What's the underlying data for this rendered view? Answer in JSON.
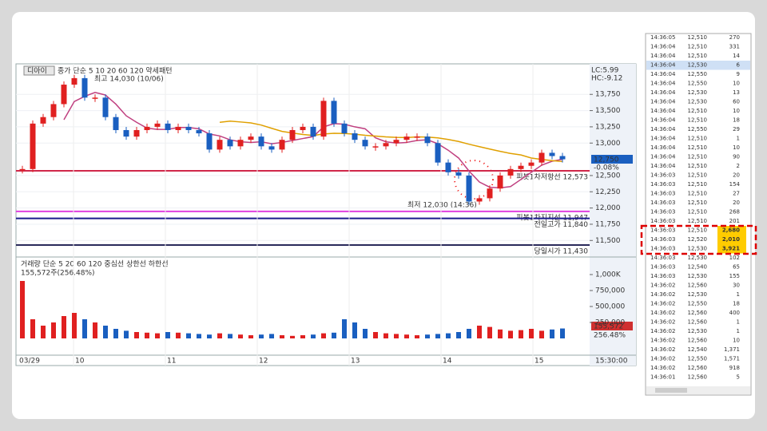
{
  "chart": {
    "symbol": "디아이",
    "legend": "종가 단순 5 10 20 60 120 약세패턴",
    "high_note": "최고 14,030 (10/06)",
    "lc": "LC:5.99",
    "hc": "HC:-9.12",
    "low_note": "최저 12,030 (14:36)",
    "price_ylim": [
      11270,
      14220
    ],
    "price_ticks": [
      {
        "value": 13750,
        "label": "13,750"
      },
      {
        "value": 13500,
        "label": "13,500"
      },
      {
        "value": 13250,
        "label": "13,250"
      },
      {
        "value": 13000,
        "label": "13,000"
      },
      {
        "value": 12500,
        "label": "12,500"
      },
      {
        "value": 12250,
        "label": "12,250"
      },
      {
        "value": 12000,
        "label": "12,000"
      },
      {
        "value": 11750,
        "label": "11,750"
      },
      {
        "value": 11500,
        "label": "11,500"
      }
    ],
    "last_price": "12,750",
    "change": "-0.08%",
    "levels": [
      {
        "label": "피봇1차저항선 12,573",
        "value": 12573,
        "color": "#d0284a"
      },
      {
        "label": "피봇1차지지선 11,947",
        "value": 11947,
        "color": "#e040e0"
      },
      {
        "label": "전일고가 11,840",
        "value": 11840,
        "color": "#1a1a8c"
      },
      {
        "label": "당일시가 11,430",
        "value": 11430,
        "color": "#2a2a5a"
      }
    ],
    "closes": [
      12600,
      13300,
      13400,
      13600,
      13900,
      14000,
      13700,
      13700,
      13400,
      13200,
      13100,
      13200,
      13250,
      13300,
      13200,
      13250,
      13200,
      13150,
      12900,
      13050,
      12950,
      13050,
      13100,
      12950,
      12900,
      13050,
      13200,
      13250,
      13100,
      13650,
      13300,
      13150,
      13050,
      12950,
      12950,
      13000,
      13050,
      13100,
      13100,
      13000,
      12700,
      12550,
      12500,
      12100,
      12150,
      12300,
      12500,
      12600,
      12650,
      12700,
      12850,
      12800,
      12750
    ],
    "volume_legend": "거래량 단순 5 20 60 120 중심선 상한선 하한선",
    "volume_note": "155,572주(256.48%)",
    "volume_ticks": [
      {
        "value": 1000000,
        "label": "1,000K"
      },
      {
        "value": 750000,
        "label": "750,000"
      },
      {
        "value": 500000,
        "label": "500,000"
      },
      {
        "value": 250000,
        "label": "250,000"
      }
    ],
    "volumes": [
      900000,
      300000,
      200000,
      250000,
      350000,
      400000,
      300000,
      250000,
      200000,
      150000,
      120000,
      100000,
      90000,
      80000,
      100000,
      90000,
      80000,
      70000,
      60000,
      80000,
      70000,
      60000,
      50000,
      60000,
      70000,
      50000,
      40000,
      50000,
      60000,
      80000,
      90000,
      300000,
      250000,
      150000,
      100000,
      80000,
      70000,
      60000,
      50000,
      60000,
      70000,
      80000,
      100000,
      150000,
      200000,
      180000,
      140000,
      120000,
      130000,
      150000,
      120000,
      140000,
      155572
    ],
    "last_volume": "155,572",
    "volume_ratio": "256.48%",
    "dates": [
      "03/29",
      "10",
      "11",
      "12",
      "13",
      "14",
      "15"
    ],
    "time": "15:30:00"
  },
  "ticks": {
    "selected_row": 3,
    "marked_rows": [
      21,
      22,
      23
    ],
    "rows": [
      [
        "14:36:05",
        "12,510",
        "270"
      ],
      [
        "14:36:04",
        "12,510",
        "331"
      ],
      [
        "14:36:04",
        "12,510",
        "14"
      ],
      [
        "14:36:04",
        "12,530",
        "6"
      ],
      [
        "14:36:04",
        "12,550",
        "9"
      ],
      [
        "14:36:04",
        "12,550",
        "10"
      ],
      [
        "14:36:04",
        "12,530",
        "13"
      ],
      [
        "14:36:04",
        "12,530",
        "60"
      ],
      [
        "14:36:04",
        "12,510",
        "10"
      ],
      [
        "14:36:04",
        "12,510",
        "18"
      ],
      [
        "14:36:04",
        "12,550",
        "29"
      ],
      [
        "14:36:04",
        "12,510",
        "1"
      ],
      [
        "14:36:04",
        "12,510",
        "10"
      ],
      [
        "14:36:04",
        "12,510",
        "90"
      ],
      [
        "14:36:04",
        "12,510",
        "2"
      ],
      [
        "14:36:03",
        "12,510",
        "20"
      ],
      [
        "14:36:03",
        "12,510",
        "154"
      ],
      [
        "14:36:03",
        "12,510",
        "27"
      ],
      [
        "14:36:03",
        "12,510",
        "20"
      ],
      [
        "14:36:03",
        "12,510",
        "268"
      ],
      [
        "14:36:03",
        "12,510",
        "201"
      ],
      [
        "14:36:03",
        "12,510",
        "2,680"
      ],
      [
        "14:36:03",
        "12,520",
        "2,010"
      ],
      [
        "14:36:03",
        "12,530",
        "3,921"
      ],
      [
        "14:36:03",
        "12,530",
        "102"
      ],
      [
        "14:36:03",
        "12,540",
        "65"
      ],
      [
        "14:36:03",
        "12,530",
        "155"
      ],
      [
        "14:36:02",
        "12,560",
        "30"
      ],
      [
        "14:36:02",
        "12,530",
        "1"
      ],
      [
        "14:36:02",
        "12,550",
        "18"
      ],
      [
        "14:36:02",
        "12,560",
        "400"
      ],
      [
        "14:36:02",
        "12,560",
        "1"
      ],
      [
        "14:36:02",
        "12,530",
        "1"
      ],
      [
        "14:36:02",
        "12,560",
        "10"
      ],
      [
        "14:36:02",
        "12,540",
        "1,371"
      ],
      [
        "14:36:02",
        "12,550",
        "1,571"
      ],
      [
        "14:36:02",
        "12,560",
        "918"
      ],
      [
        "14:36:01",
        "12,560",
        "5"
      ]
    ]
  }
}
